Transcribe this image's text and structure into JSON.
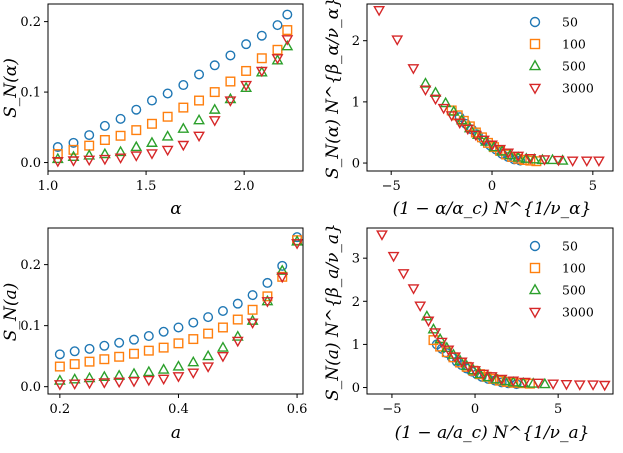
{
  "series_styles": [
    {
      "name": "50",
      "marker": "circle",
      "color": "#1f77b4"
    },
    {
      "name": "100",
      "marker": "square",
      "color": "#ff7f0e"
    },
    {
      "name": "500",
      "marker": "triangle-up",
      "color": "#2ca02c"
    },
    {
      "name": "3000",
      "marker": "triangle-down",
      "color": "#d62728"
    }
  ],
  "chart_data": [
    {
      "id": "top-left",
      "type": "scatter",
      "title": "",
      "xlabel": "α",
      "ylabel": "S_N(α)",
      "xlim": [
        1.0,
        2.3
      ],
      "ylim": [
        -0.012,
        0.225
      ],
      "xticks": [
        1.0,
        1.5,
        2.0
      ],
      "xtick_labels": [
        "1.0",
        "1.5",
        "2.0"
      ],
      "yticks": [
        0.0,
        0.1,
        0.2
      ],
      "ytick_labels": [
        "0.0",
        "0.1",
        "0.2"
      ],
      "legend": false,
      "series": [
        {
          "name": "50",
          "x": [
            1.05,
            1.13,
            1.21,
            1.29,
            1.37,
            1.45,
            1.53,
            1.61,
            1.69,
            1.77,
            1.85,
            1.93,
            2.01,
            2.09,
            2.17,
            2.22
          ],
          "y": [
            0.022,
            0.028,
            0.039,
            0.052,
            0.062,
            0.075,
            0.088,
            0.098,
            0.11,
            0.125,
            0.138,
            0.152,
            0.168,
            0.18,
            0.195,
            0.21
          ]
        },
        {
          "name": "100",
          "x": [
            1.05,
            1.13,
            1.21,
            1.29,
            1.37,
            1.45,
            1.53,
            1.61,
            1.69,
            1.77,
            1.85,
            1.93,
            2.01,
            2.09,
            2.17,
            2.22
          ],
          "y": [
            0.012,
            0.018,
            0.024,
            0.032,
            0.038,
            0.046,
            0.055,
            0.065,
            0.078,
            0.088,
            0.1,
            0.115,
            0.13,
            0.148,
            0.16,
            0.188
          ]
        },
        {
          "name": "500",
          "x": [
            1.05,
            1.13,
            1.21,
            1.29,
            1.37,
            1.45,
            1.53,
            1.61,
            1.69,
            1.77,
            1.85,
            1.93,
            2.01,
            2.09,
            2.17,
            2.22
          ],
          "y": [
            0.005,
            0.008,
            0.01,
            0.012,
            0.015,
            0.022,
            0.028,
            0.037,
            0.048,
            0.06,
            0.075,
            0.09,
            0.106,
            0.128,
            0.145,
            0.165
          ]
        },
        {
          "name": "3000",
          "x": [
            1.05,
            1.13,
            1.21,
            1.29,
            1.37,
            1.45,
            1.53,
            1.61,
            1.69,
            1.77,
            1.85,
            1.93,
            2.01,
            2.09,
            2.17,
            2.22
          ],
          "y": [
            0.002,
            0.003,
            0.004,
            0.005,
            0.007,
            0.01,
            0.013,
            0.018,
            0.025,
            0.038,
            0.06,
            0.088,
            0.11,
            0.13,
            0.148,
            0.175
          ]
        }
      ]
    },
    {
      "id": "top-right",
      "type": "scatter",
      "title": "",
      "xlabel": "(1 − α/α_c) N^{1/ν_α}",
      "ylabel": "S_N(α) N^{β_α/ν_α}",
      "xlim": [
        -6.2,
        6.0
      ],
      "ylim": [
        -0.13,
        2.6
      ],
      "xticks": [
        -5,
        0,
        5
      ],
      "xtick_labels": [
        "−5",
        "0",
        "5"
      ],
      "yticks": [
        0,
        1,
        2
      ],
      "ytick_labels": [
        "0",
        "1",
        "2"
      ],
      "legend": true,
      "legend_position": "top-right",
      "series": [
        {
          "name": "50",
          "x": [
            -1.6,
            -1.3,
            -1.0,
            -0.7,
            -0.4,
            -0.1,
            0.2,
            0.5,
            0.8,
            1.1,
            1.4
          ],
          "y": [
            0.75,
            0.64,
            0.55,
            0.46,
            0.37,
            0.29,
            0.22,
            0.15,
            0.1,
            0.06,
            0.04
          ]
        },
        {
          "name": "100",
          "x": [
            -2.0,
            -1.7,
            -1.4,
            -1.1,
            -0.8,
            -0.5,
            -0.2,
            0.1,
            0.4,
            0.7,
            1.0,
            1.3,
            1.6,
            1.9,
            2.2
          ],
          "y": [
            0.86,
            0.78,
            0.69,
            0.6,
            0.5,
            0.42,
            0.33,
            0.26,
            0.2,
            0.14,
            0.1,
            0.07,
            0.05,
            0.04,
            0.03
          ]
        },
        {
          "name": "500",
          "x": [
            -3.3,
            -2.8,
            -2.3,
            -1.9,
            -1.5,
            -1.1,
            -0.7,
            -0.3,
            0.1,
            0.5,
            0.9,
            1.3,
            1.7,
            2.1,
            2.5,
            3.0,
            3.5
          ],
          "y": [
            1.3,
            1.15,
            0.98,
            0.84,
            0.7,
            0.57,
            0.46,
            0.35,
            0.26,
            0.19,
            0.13,
            0.09,
            0.07,
            0.06,
            0.05,
            0.05,
            0.04
          ]
        },
        {
          "name": "3000",
          "x": [
            -5.6,
            -4.7,
            -3.9,
            -3.3,
            -2.8,
            -2.4,
            -2.0,
            -1.6,
            -1.2,
            -0.8,
            -0.4,
            0.0,
            0.4,
            0.8,
            1.3,
            1.9,
            2.6,
            3.3,
            4.0,
            4.7,
            5.3
          ],
          "y": [
            2.5,
            2.02,
            1.55,
            1.2,
            1.05,
            0.9,
            0.78,
            0.66,
            0.56,
            0.46,
            0.38,
            0.3,
            0.23,
            0.17,
            0.12,
            0.08,
            0.06,
            0.05,
            0.04,
            0.04,
            0.04
          ]
        }
      ]
    },
    {
      "id": "bottom-left",
      "type": "scatter",
      "title": "",
      "xlabel": "a",
      "ylabel": "S_N(a)",
      "xlim": [
        0.18,
        0.61
      ],
      "ylim": [
        -0.012,
        0.26
      ],
      "xticks": [
        0.2,
        0.4,
        0.6
      ],
      "xtick_labels": [
        "0.2",
        "0.4",
        "0.6"
      ],
      "yticks": [
        0.0,
        0.1,
        0.2
      ],
      "ytick_labels": [
        "0.0",
        "0.1",
        "0.2"
      ],
      "legend": false,
      "series": [
        {
          "name": "50",
          "x": [
            0.2,
            0.225,
            0.25,
            0.275,
            0.3,
            0.325,
            0.35,
            0.375,
            0.4,
            0.425,
            0.45,
            0.475,
            0.5,
            0.525,
            0.55,
            0.575,
            0.6
          ],
          "y": [
            0.053,
            0.058,
            0.062,
            0.067,
            0.072,
            0.077,
            0.083,
            0.09,
            0.097,
            0.105,
            0.114,
            0.124,
            0.136,
            0.15,
            0.17,
            0.198,
            0.245
          ]
        },
        {
          "name": "100",
          "x": [
            0.2,
            0.225,
            0.25,
            0.275,
            0.3,
            0.325,
            0.35,
            0.375,
            0.4,
            0.425,
            0.45,
            0.475,
            0.5,
            0.525,
            0.55,
            0.575,
            0.6
          ],
          "y": [
            0.033,
            0.037,
            0.041,
            0.045,
            0.049,
            0.054,
            0.059,
            0.064,
            0.071,
            0.078,
            0.087,
            0.097,
            0.11,
            0.126,
            0.148,
            0.18,
            0.24
          ]
        },
        {
          "name": "500",
          "x": [
            0.2,
            0.225,
            0.25,
            0.275,
            0.3,
            0.325,
            0.35,
            0.375,
            0.4,
            0.425,
            0.45,
            0.475,
            0.5,
            0.525,
            0.55,
            0.575,
            0.6
          ],
          "y": [
            0.01,
            0.012,
            0.014,
            0.016,
            0.018,
            0.021,
            0.024,
            0.028,
            0.033,
            0.04,
            0.05,
            0.064,
            0.082,
            0.108,
            0.14,
            0.19,
            0.238
          ]
        },
        {
          "name": "3000",
          "x": [
            0.2,
            0.225,
            0.25,
            0.275,
            0.3,
            0.325,
            0.35,
            0.375,
            0.4,
            0.425,
            0.45,
            0.475,
            0.5,
            0.525,
            0.55,
            0.575,
            0.6
          ],
          "y": [
            0.004,
            0.005,
            0.006,
            0.007,
            0.008,
            0.009,
            0.011,
            0.013,
            0.017,
            0.023,
            0.033,
            0.05,
            0.075,
            0.105,
            0.14,
            0.18,
            0.235
          ]
        }
      ]
    },
    {
      "id": "bottom-right",
      "type": "scatter",
      "title": "",
      "xlabel": "(1 − a/a_c) N^{1/ν_a}",
      "ylabel": "S_N(a) N^{β_a/ν_a}",
      "xlim": [
        -6.5,
        8.3
      ],
      "ylim": [
        -0.15,
        3.7
      ],
      "xticks": [
        -5,
        0,
        5
      ],
      "xtick_labels": [
        "−5",
        "0",
        "5"
      ],
      "yticks": [
        0,
        1,
        2,
        3
      ],
      "ytick_labels": [
        "0",
        "1",
        "2",
        "3"
      ],
      "legend": true,
      "legend_position": "top-right",
      "series": [
        {
          "name": "50",
          "x": [
            -2.3,
            -2.0,
            -1.7,
            -1.4,
            -1.1,
            -0.8,
            -0.5,
            -0.2,
            0.1,
            0.4,
            0.8,
            1.2,
            1.6,
            2.0,
            2.5
          ],
          "y": [
            1.0,
            0.9,
            0.8,
            0.7,
            0.6,
            0.52,
            0.44,
            0.37,
            0.31,
            0.25,
            0.2,
            0.16,
            0.12,
            0.1,
            0.08
          ]
        },
        {
          "name": "100",
          "x": [
            -2.5,
            -2.1,
            -1.7,
            -1.3,
            -0.9,
            -0.5,
            -0.1,
            0.3,
            0.7,
            1.1,
            1.5,
            1.9,
            2.3,
            2.8,
            3.3
          ],
          "y": [
            1.1,
            0.95,
            0.82,
            0.7,
            0.58,
            0.48,
            0.39,
            0.31,
            0.25,
            0.2,
            0.16,
            0.13,
            0.11,
            0.1,
            0.09
          ]
        },
        {
          "name": "500",
          "x": [
            -2.9,
            -2.5,
            -2.1,
            -1.7,
            -1.3,
            -0.9,
            -0.5,
            -0.1,
            0.3,
            0.8,
            1.3,
            1.8,
            2.3,
            2.9,
            3.5,
            4.2
          ],
          "y": [
            1.65,
            1.35,
            1.12,
            0.92,
            0.76,
            0.62,
            0.5,
            0.4,
            0.31,
            0.24,
            0.19,
            0.15,
            0.12,
            0.1,
            0.09,
            0.08
          ]
        },
        {
          "name": "3000",
          "x": [
            -5.6,
            -4.9,
            -4.3,
            -3.7,
            -3.3,
            -2.8,
            -2.4,
            -2.0,
            -1.6,
            -1.2,
            -0.8,
            -0.4,
            0.0,
            0.5,
            1.0,
            1.6,
            2.3,
            3.0,
            3.8,
            4.7,
            5.5,
            6.3,
            7.1,
            7.8
          ],
          "y": [
            3.55,
            3.05,
            2.65,
            2.3,
            1.9,
            1.55,
            1.28,
            1.06,
            0.88,
            0.72,
            0.6,
            0.49,
            0.4,
            0.32,
            0.26,
            0.2,
            0.16,
            0.13,
            0.11,
            0.09,
            0.08,
            0.07,
            0.07,
            0.06
          ]
        }
      ]
    }
  ]
}
